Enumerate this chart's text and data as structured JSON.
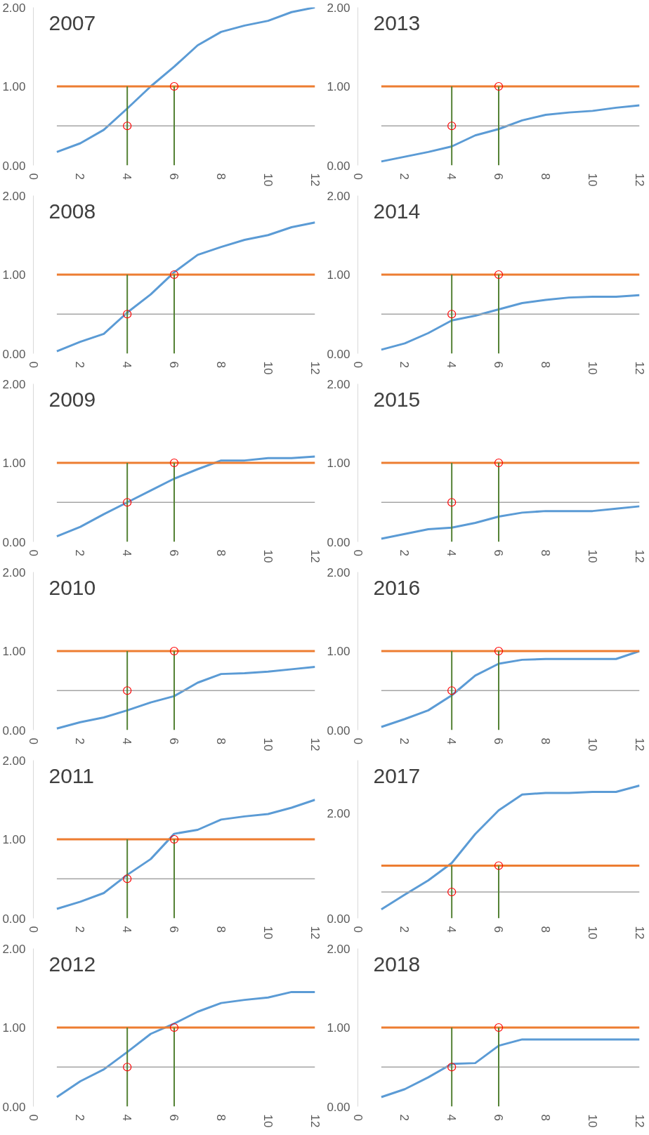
{
  "chart_data": [
    {
      "type": "line",
      "title": "2007",
      "xlim": [
        0,
        12
      ],
      "xticks": [
        0,
        2,
        4,
        6,
        8,
        10,
        12
      ],
      "ylim": [
        0,
        2
      ],
      "yticks": [
        {
          "value": 0,
          "label": "0.00"
        },
        {
          "value": 1,
          "label": "1.00"
        },
        {
          "value": 2,
          "label": "2.00"
        }
      ],
      "series": [
        {
          "color": "#5b9bd5",
          "x": [
            1,
            2,
            3,
            4,
            5,
            6,
            7,
            8,
            9,
            10,
            11,
            12
          ],
          "values": [
            0.17,
            0.28,
            0.45,
            0.72,
            1.0,
            1.25,
            1.52,
            1.69,
            1.77,
            1.83,
            1.94,
            2.0
          ]
        },
        {
          "color": "#ed7d31",
          "x": [
            1,
            12
          ],
          "values": [
            1,
            1
          ]
        },
        {
          "color": "#a5a5a5",
          "x": [
            1,
            12
          ],
          "values": [
            0.5,
            0.5
          ]
        },
        {
          "color": "#548235",
          "x": [
            4,
            4
          ],
          "values": [
            0,
            1
          ]
        },
        {
          "color": "#548235",
          "x": [
            6,
            6
          ],
          "values": [
            0,
            1
          ]
        },
        {
          "type": "scatter",
          "marker": "circle",
          "color": "#ff0000",
          "x": [
            4,
            6
          ],
          "values": [
            0.5,
            1
          ]
        }
      ]
    },
    {
      "type": "line",
      "title": "2013",
      "xlim": [
        0,
        12
      ],
      "xticks": [
        0,
        2,
        4,
        6,
        8,
        10,
        12
      ],
      "ylim": [
        0,
        2
      ],
      "yticks": [
        {
          "value": 0,
          "label": "0.00"
        },
        {
          "value": 1,
          "label": "1.00"
        },
        {
          "value": 2,
          "label": "2.00"
        }
      ],
      "series": [
        {
          "color": "#5b9bd5",
          "x": [
            1,
            2,
            3,
            4,
            5,
            6,
            7,
            8,
            9,
            10,
            11,
            12
          ],
          "values": [
            0.05,
            0.11,
            0.17,
            0.24,
            0.38,
            0.46,
            0.57,
            0.64,
            0.67,
            0.69,
            0.73,
            0.76
          ]
        },
        {
          "color": "#ed7d31",
          "x": [
            1,
            12
          ],
          "values": [
            1,
            1
          ]
        },
        {
          "color": "#a5a5a5",
          "x": [
            1,
            12
          ],
          "values": [
            0.5,
            0.5
          ]
        },
        {
          "color": "#548235",
          "x": [
            4,
            4
          ],
          "values": [
            0,
            1
          ]
        },
        {
          "color": "#548235",
          "x": [
            6,
            6
          ],
          "values": [
            0,
            1
          ]
        },
        {
          "type": "scatter",
          "marker": "circle",
          "color": "#ff0000",
          "x": [
            4,
            6
          ],
          "values": [
            0.5,
            1
          ]
        }
      ]
    },
    {
      "type": "line",
      "title": "2008",
      "xlim": [
        0,
        12
      ],
      "xticks": [
        0,
        2,
        4,
        6,
        8,
        10,
        12
      ],
      "ylim": [
        0,
        2
      ],
      "yticks": [
        {
          "value": 0,
          "label": "0.00"
        },
        {
          "value": 1,
          "label": "1.00"
        },
        {
          "value": 2,
          "label": "2.00"
        }
      ],
      "series": [
        {
          "color": "#5b9bd5",
          "x": [
            1,
            2,
            3,
            4,
            5,
            6,
            7,
            8,
            9,
            10,
            11,
            12
          ],
          "values": [
            0.03,
            0.15,
            0.25,
            0.52,
            0.75,
            1.03,
            1.25,
            1.35,
            1.44,
            1.5,
            1.6,
            1.66
          ]
        },
        {
          "color": "#ed7d31",
          "x": [
            1,
            12
          ],
          "values": [
            1,
            1
          ]
        },
        {
          "color": "#a5a5a5",
          "x": [
            1,
            12
          ],
          "values": [
            0.5,
            0.5
          ]
        },
        {
          "color": "#548235",
          "x": [
            4,
            4
          ],
          "values": [
            0,
            1
          ]
        },
        {
          "color": "#548235",
          "x": [
            6,
            6
          ],
          "values": [
            0,
            1
          ]
        },
        {
          "type": "scatter",
          "marker": "circle",
          "color": "#ff0000",
          "x": [
            4,
            6
          ],
          "values": [
            0.5,
            1
          ]
        }
      ]
    },
    {
      "type": "line",
      "title": "2014",
      "xlim": [
        0,
        12
      ],
      "xticks": [
        0,
        2,
        4,
        6,
        8,
        10,
        12
      ],
      "ylim": [
        0,
        2
      ],
      "yticks": [
        {
          "value": 0,
          "label": "0.00"
        },
        {
          "value": 1,
          "label": "1.00"
        },
        {
          "value": 2,
          "label": "2.00"
        }
      ],
      "series": [
        {
          "color": "#5b9bd5",
          "x": [
            1,
            2,
            3,
            4,
            5,
            6,
            7,
            8,
            9,
            10,
            11,
            12
          ],
          "values": [
            0.05,
            0.13,
            0.26,
            0.42,
            0.48,
            0.56,
            0.64,
            0.68,
            0.71,
            0.72,
            0.72,
            0.74
          ]
        },
        {
          "color": "#ed7d31",
          "x": [
            1,
            12
          ],
          "values": [
            1,
            1
          ]
        },
        {
          "color": "#a5a5a5",
          "x": [
            1,
            12
          ],
          "values": [
            0.5,
            0.5
          ]
        },
        {
          "color": "#548235",
          "x": [
            4,
            4
          ],
          "values": [
            0,
            1
          ]
        },
        {
          "color": "#548235",
          "x": [
            6,
            6
          ],
          "values": [
            0,
            1
          ]
        },
        {
          "type": "scatter",
          "marker": "circle",
          "color": "#ff0000",
          "x": [
            4,
            6
          ],
          "values": [
            0.5,
            1
          ]
        }
      ]
    },
    {
      "type": "line",
      "title": "2009",
      "xlim": [
        0,
        12
      ],
      "xticks": [
        0,
        2,
        4,
        6,
        8,
        10,
        12
      ],
      "ylim": [
        0,
        2
      ],
      "yticks": [
        {
          "value": 0,
          "label": "0.00"
        },
        {
          "value": 1,
          "label": "1.00"
        },
        {
          "value": 2,
          "label": "2.00"
        }
      ],
      "series": [
        {
          "color": "#5b9bd5",
          "x": [
            1,
            2,
            3,
            4,
            5,
            6,
            7,
            8,
            9,
            10,
            11,
            12
          ],
          "values": [
            0.07,
            0.19,
            0.35,
            0.5,
            0.65,
            0.8,
            0.92,
            1.03,
            1.03,
            1.06,
            1.06,
            1.08
          ]
        },
        {
          "color": "#ed7d31",
          "x": [
            1,
            12
          ],
          "values": [
            1,
            1
          ]
        },
        {
          "color": "#a5a5a5",
          "x": [
            1,
            12
          ],
          "values": [
            0.5,
            0.5
          ]
        },
        {
          "color": "#548235",
          "x": [
            4,
            4
          ],
          "values": [
            0,
            1
          ]
        },
        {
          "color": "#548235",
          "x": [
            6,
            6
          ],
          "values": [
            0,
            1
          ]
        },
        {
          "type": "scatter",
          "marker": "circle",
          "color": "#ff0000",
          "x": [
            4,
            6
          ],
          "values": [
            0.5,
            1
          ]
        }
      ]
    },
    {
      "type": "line",
      "title": "2015",
      "xlim": [
        0,
        12
      ],
      "xticks": [
        0,
        2,
        4,
        6,
        8,
        10,
        12
      ],
      "ylim": [
        0,
        2
      ],
      "yticks": [
        {
          "value": 0,
          "label": "0.00"
        },
        {
          "value": 1,
          "label": "1.00"
        },
        {
          "value": 2,
          "label": "2.00"
        }
      ],
      "series": [
        {
          "color": "#5b9bd5",
          "x": [
            1,
            2,
            3,
            4,
            5,
            6,
            7,
            8,
            9,
            10,
            11,
            12
          ],
          "values": [
            0.04,
            0.1,
            0.16,
            0.18,
            0.24,
            0.32,
            0.37,
            0.39,
            0.39,
            0.39,
            0.42,
            0.45
          ]
        },
        {
          "color": "#ed7d31",
          "x": [
            1,
            12
          ],
          "values": [
            1,
            1
          ]
        },
        {
          "color": "#a5a5a5",
          "x": [
            1,
            12
          ],
          "values": [
            0.5,
            0.5
          ]
        },
        {
          "color": "#548235",
          "x": [
            4,
            4
          ],
          "values": [
            0,
            1
          ]
        },
        {
          "color": "#548235",
          "x": [
            6,
            6
          ],
          "values": [
            0,
            1
          ]
        },
        {
          "type": "scatter",
          "marker": "circle",
          "color": "#ff0000",
          "x": [
            4,
            6
          ],
          "values": [
            0.5,
            1
          ]
        }
      ]
    },
    {
      "type": "line",
      "title": "2010",
      "xlim": [
        0,
        12
      ],
      "xticks": [
        0,
        2,
        4,
        6,
        8,
        10,
        12
      ],
      "ylim": [
        0,
        2
      ],
      "yticks": [
        {
          "value": 0,
          "label": "0.00"
        },
        {
          "value": 1,
          "label": "1.00"
        },
        {
          "value": 2,
          "label": "2.00"
        }
      ],
      "series": [
        {
          "color": "#5b9bd5",
          "x": [
            1,
            2,
            3,
            4,
            5,
            6,
            7,
            8,
            9,
            10,
            11,
            12
          ],
          "values": [
            0.02,
            0.1,
            0.16,
            0.25,
            0.35,
            0.43,
            0.6,
            0.71,
            0.72,
            0.74,
            0.77,
            0.8
          ]
        },
        {
          "color": "#ed7d31",
          "x": [
            1,
            12
          ],
          "values": [
            1,
            1
          ]
        },
        {
          "color": "#a5a5a5",
          "x": [
            1,
            12
          ],
          "values": [
            0.5,
            0.5
          ]
        },
        {
          "color": "#548235",
          "x": [
            4,
            4
          ],
          "values": [
            0,
            1
          ]
        },
        {
          "color": "#548235",
          "x": [
            6,
            6
          ],
          "values": [
            0,
            1
          ]
        },
        {
          "type": "scatter",
          "marker": "circle",
          "color": "#ff0000",
          "x": [
            4,
            6
          ],
          "values": [
            0.5,
            1
          ]
        }
      ]
    },
    {
      "type": "line",
      "title": "2016",
      "xlim": [
        0,
        12
      ],
      "xticks": [
        0,
        2,
        4,
        6,
        8,
        10,
        12
      ],
      "ylim": [
        0,
        2
      ],
      "yticks": [
        {
          "value": 0,
          "label": "0.00"
        },
        {
          "value": 1,
          "label": "1.00"
        },
        {
          "value": 2,
          "label": "2.00"
        }
      ],
      "series": [
        {
          "color": "#5b9bd5",
          "x": [
            1,
            2,
            3,
            4,
            5,
            6,
            7,
            8,
            9,
            10,
            11,
            12
          ],
          "values": [
            0.04,
            0.14,
            0.25,
            0.44,
            0.69,
            0.84,
            0.89,
            0.9,
            0.9,
            0.9,
            0.9,
            1.0
          ]
        },
        {
          "color": "#ed7d31",
          "x": [
            1,
            12
          ],
          "values": [
            1,
            1
          ]
        },
        {
          "color": "#a5a5a5",
          "x": [
            1,
            12
          ],
          "values": [
            0.5,
            0.5
          ]
        },
        {
          "color": "#548235",
          "x": [
            4,
            4
          ],
          "values": [
            0,
            1
          ]
        },
        {
          "color": "#548235",
          "x": [
            6,
            6
          ],
          "values": [
            0,
            1
          ]
        },
        {
          "type": "scatter",
          "marker": "circle",
          "color": "#ff0000",
          "x": [
            4,
            6
          ],
          "values": [
            0.5,
            1
          ]
        }
      ]
    },
    {
      "type": "line",
      "title": "2011",
      "xlim": [
        0,
        12
      ],
      "xticks": [
        0,
        2,
        4,
        6,
        8,
        10,
        12
      ],
      "ylim": [
        0,
        2
      ],
      "yticks": [
        {
          "value": 0,
          "label": "0.00"
        },
        {
          "value": 1,
          "label": "1.00"
        },
        {
          "value": 2,
          "label": "2.00"
        }
      ],
      "series": [
        {
          "color": "#5b9bd5",
          "x": [
            1,
            2,
            3,
            4,
            5,
            6,
            7,
            8,
            9,
            10,
            11,
            12
          ],
          "values": [
            0.12,
            0.21,
            0.32,
            0.55,
            0.75,
            1.07,
            1.12,
            1.25,
            1.29,
            1.32,
            1.4,
            1.5
          ]
        },
        {
          "color": "#ed7d31",
          "x": [
            1,
            12
          ],
          "values": [
            1,
            1
          ]
        },
        {
          "color": "#a5a5a5",
          "x": [
            1,
            12
          ],
          "values": [
            0.5,
            0.5
          ]
        },
        {
          "color": "#548235",
          "x": [
            4,
            4
          ],
          "values": [
            0,
            1
          ]
        },
        {
          "color": "#548235",
          "x": [
            6,
            6
          ],
          "values": [
            0,
            1
          ]
        },
        {
          "type": "scatter",
          "marker": "circle",
          "color": "#ff0000",
          "x": [
            4,
            6
          ],
          "values": [
            0.5,
            1
          ]
        }
      ]
    },
    {
      "type": "line",
      "title": "2017",
      "xlim": [
        0,
        12
      ],
      "xticks": [
        0,
        2,
        4,
        6,
        8,
        10,
        12
      ],
      "ylim": [
        0,
        3
      ],
      "yticks": [
        {
          "value": 0,
          "label": "0.00"
        },
        {
          "value": 2,
          "label": "2.00"
        }
      ],
      "series": [
        {
          "color": "#5b9bd5",
          "x": [
            1,
            2,
            3,
            4,
            5,
            6,
            7,
            8,
            9,
            10,
            11,
            12
          ],
          "values": [
            0.17,
            0.45,
            0.72,
            1.05,
            1.6,
            2.05,
            2.35,
            2.38,
            2.38,
            2.4,
            2.4,
            2.52
          ]
        },
        {
          "color": "#ed7d31",
          "x": [
            1,
            12
          ],
          "values": [
            1,
            1
          ]
        },
        {
          "color": "#a5a5a5",
          "x": [
            1,
            12
          ],
          "values": [
            0.5,
            0.5
          ]
        },
        {
          "color": "#548235",
          "x": [
            4,
            4
          ],
          "values": [
            0,
            1
          ]
        },
        {
          "color": "#548235",
          "x": [
            6,
            6
          ],
          "values": [
            0,
            1
          ]
        },
        {
          "type": "scatter",
          "marker": "circle",
          "color": "#ff0000",
          "x": [
            4,
            6
          ],
          "values": [
            0.5,
            1
          ]
        }
      ]
    },
    {
      "type": "line",
      "title": "2012",
      "xlim": [
        0,
        12
      ],
      "xticks": [
        0,
        2,
        4,
        6,
        8,
        10,
        12
      ],
      "ylim": [
        0,
        2
      ],
      "yticks": [
        {
          "value": 0,
          "label": "0.00"
        },
        {
          "value": 1,
          "label": "1.00"
        },
        {
          "value": 2,
          "label": "2.00"
        }
      ],
      "series": [
        {
          "color": "#5b9bd5",
          "x": [
            1,
            2,
            3,
            4,
            5,
            6,
            7,
            8,
            9,
            10,
            11,
            12
          ],
          "values": [
            0.12,
            0.32,
            0.47,
            0.69,
            0.92,
            1.05,
            1.2,
            1.31,
            1.35,
            1.38,
            1.45,
            1.45
          ]
        },
        {
          "color": "#ed7d31",
          "x": [
            1,
            12
          ],
          "values": [
            1,
            1
          ]
        },
        {
          "color": "#a5a5a5",
          "x": [
            1,
            12
          ],
          "values": [
            0.5,
            0.5
          ]
        },
        {
          "color": "#548235",
          "x": [
            4,
            4
          ],
          "values": [
            0,
            1
          ]
        },
        {
          "color": "#548235",
          "x": [
            6,
            6
          ],
          "values": [
            0,
            1
          ]
        },
        {
          "type": "scatter",
          "marker": "circle",
          "color": "#ff0000",
          "x": [
            4,
            6
          ],
          "values": [
            0.5,
            1
          ]
        }
      ]
    },
    {
      "type": "line",
      "title": "2018",
      "xlim": [
        0,
        12
      ],
      "xticks": [
        0,
        2,
        4,
        6,
        8,
        10,
        12
      ],
      "ylim": [
        0,
        2
      ],
      "yticks": [
        {
          "value": 0,
          "label": "0.00"
        },
        {
          "value": 1,
          "label": "1.00"
        },
        {
          "value": 2,
          "label": "2.00"
        }
      ],
      "series": [
        {
          "color": "#5b9bd5",
          "x": [
            1,
            2,
            3,
            4,
            5,
            6,
            7,
            8,
            9,
            10,
            11,
            12
          ],
          "values": [
            0.12,
            0.22,
            0.37,
            0.54,
            0.55,
            0.77,
            0.85,
            0.85,
            0.85,
            0.85,
            0.85,
            0.85
          ]
        },
        {
          "color": "#ed7d31",
          "x": [
            1,
            12
          ],
          "values": [
            1,
            1
          ]
        },
        {
          "color": "#a5a5a5",
          "x": [
            1,
            12
          ],
          "values": [
            0.5,
            0.5
          ]
        },
        {
          "color": "#548235",
          "x": [
            4,
            4
          ],
          "values": [
            0,
            1
          ]
        },
        {
          "color": "#548235",
          "x": [
            6,
            6
          ],
          "values": [
            0,
            1
          ]
        },
        {
          "type": "scatter",
          "marker": "circle",
          "color": "#ff0000",
          "x": [
            4,
            6
          ],
          "values": [
            0.5,
            1
          ]
        }
      ]
    }
  ]
}
